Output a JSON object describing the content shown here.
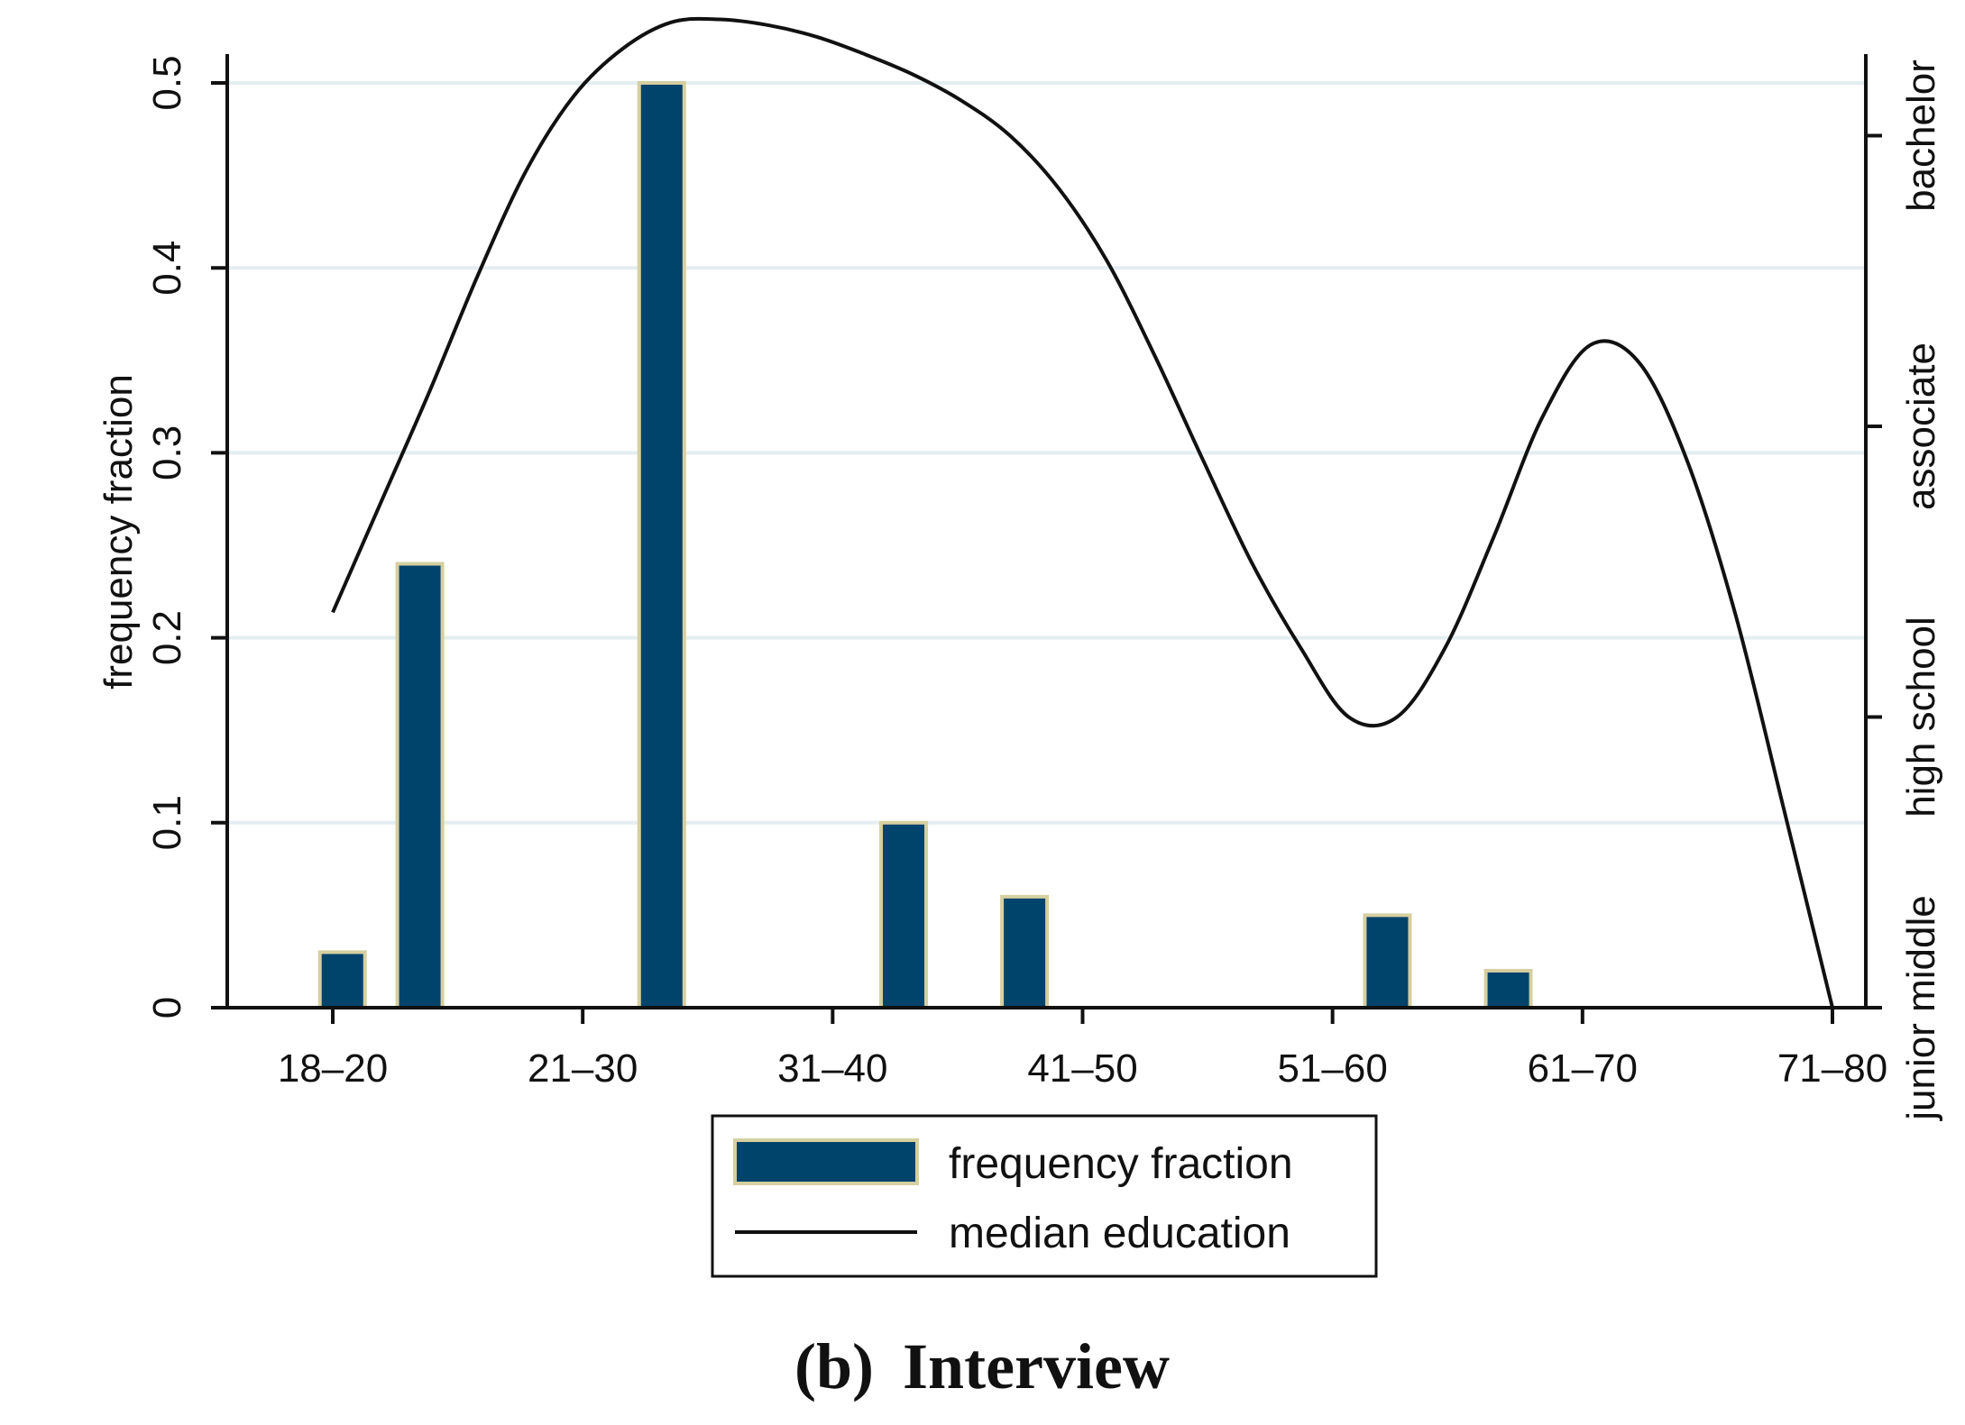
{
  "chart_data": {
    "type": "bar",
    "categories": [
      "18–20",
      "21–30",
      "31–40",
      "41–50",
      "51–60",
      "61–70",
      "71–80"
    ],
    "series": [
      {
        "name": "frequency fraction",
        "type": "bar",
        "axis": "left",
        "x": [
          18.4,
          21.6,
          31.6,
          41.6,
          46.6,
          61.6,
          66.6
        ],
        "values": [
          0.03,
          0.24,
          0.5,
          0.1,
          0.06,
          0.05,
          0.02
        ]
      },
      {
        "name": "median education",
        "type": "line",
        "axis": "right",
        "x": [
          18,
          20,
          22,
          24,
          26,
          28,
          30,
          32,
          34,
          36,
          38,
          40,
          42,
          44,
          46,
          48,
          50,
          52,
          54,
          56,
          58,
          60,
          62,
          64,
          66,
          68,
          70,
          72,
          74,
          76,
          78,
          80
        ],
        "values": [
          1.36,
          1.74,
          2.12,
          2.52,
          2.88,
          3.14,
          3.3,
          3.39,
          3.4,
          3.38,
          3.34,
          3.28,
          3.21,
          3.12,
          3.0,
          2.82,
          2.57,
          2.24,
          1.88,
          1.53,
          1.24,
          1.0,
          1.0,
          1.24,
          1.62,
          2.03,
          2.28,
          2.22,
          1.88,
          1.35,
          0.68,
          0.0
        ]
      }
    ],
    "xlabel": "",
    "ylabel": "frequency fraction",
    "ylim": [
      0,
      0.5
    ],
    "yticks": [
      0,
      0.1,
      0.2,
      0.3,
      0.4,
      0.5
    ],
    "ytick_labels": [
      "0",
      "0.1",
      "0.2",
      "0.3",
      "0.4",
      "0.5"
    ],
    "y2_ticks": [
      0,
      1,
      2,
      3
    ],
    "y2_tick_labels": [
      "junior middle",
      "high school",
      "associate",
      "bachelor"
    ],
    "grid": true,
    "legend": {
      "position": "bottom",
      "entries": [
        "frequency fraction",
        "median education"
      ]
    },
    "caption_label": "(b)",
    "caption_text": "Interview"
  },
  "colors": {
    "bar_fill": "#00436b",
    "bar_edge": "#d6cfa0",
    "line": "#111111",
    "grid": "#e4eef0",
    "axis": "#111111"
  }
}
